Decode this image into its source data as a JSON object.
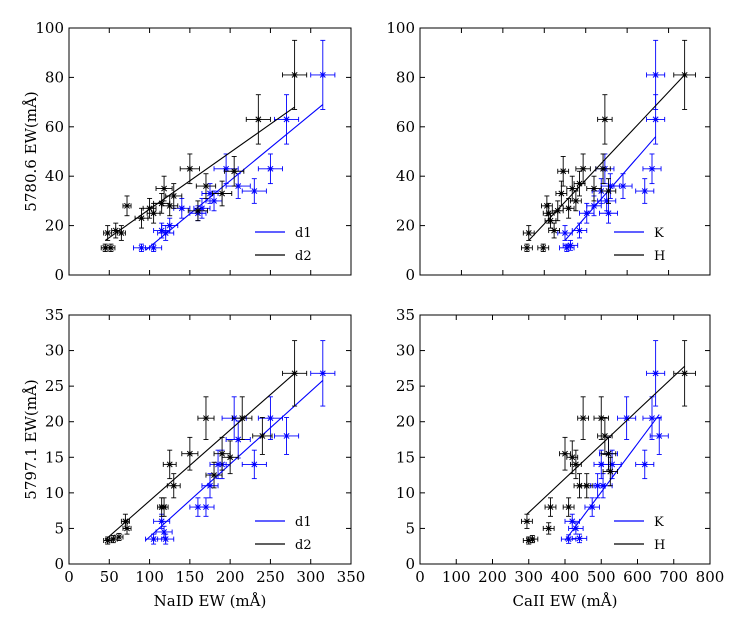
{
  "colors": {
    "blue": "#0000ff",
    "black": "#000000"
  },
  "chart_data": [
    {
      "type": "scatter",
      "ylabel": "5780.6 EW(mÅ)",
      "xlabel": "",
      "xlim": [
        0,
        350
      ],
      "ylim": [
        0,
        100
      ],
      "xticks": [],
      "xtick_labels": [],
      "yticks": [
        0,
        20,
        40,
        60,
        80,
        100
      ],
      "ytick_labels": [
        "0",
        "20",
        "40",
        "60",
        "80",
        "100"
      ],
      "legend": "bottom-right",
      "series": [
        {
          "name": "d1",
          "color": "blue",
          "points": [
            [
              90,
              11,
              10,
              1.5
            ],
            [
              105,
              11,
              10,
              1.5
            ],
            [
              115,
              18,
              10,
              3
            ],
            [
              120,
              17,
              10,
              3
            ],
            [
              125,
              20,
              10,
              3
            ],
            [
              140,
              27,
              10,
              4
            ],
            [
              160,
              25,
              10,
              3
            ],
            [
              165,
              27,
              10,
              4
            ],
            [
              175,
              33,
              10,
              4
            ],
            [
              180,
              30,
              10,
              4
            ],
            [
              195,
              43,
              15,
              6
            ],
            [
              210,
              36,
              15,
              5
            ],
            [
              230,
              34,
              15,
              5
            ],
            [
              250,
              43,
              15,
              6
            ],
            [
              270,
              63,
              15,
              10
            ],
            [
              315,
              81,
              15,
              14
            ]
          ],
          "fit": [
            [
              95,
              10
            ],
            [
              315,
              69
            ]
          ]
        },
        {
          "name": "d2",
          "color": "black",
          "points": [
            [
              45,
              11,
              5,
              1.5
            ],
            [
              48,
              17,
              5,
              3
            ],
            [
              52,
              11,
              5,
              1.5
            ],
            [
              58,
              18,
              5,
              3
            ],
            [
              65,
              17,
              5,
              3
            ],
            [
              72,
              28,
              5,
              4
            ],
            [
              90,
              23,
              8,
              4
            ],
            [
              100,
              27,
              8,
              4
            ],
            [
              105,
              25,
              8,
              4
            ],
            [
              115,
              29,
              10,
              4
            ],
            [
              118,
              35,
              10,
              5
            ],
            [
              125,
              28,
              10,
              4
            ],
            [
              130,
              32,
              10,
              5
            ],
            [
              150,
              43,
              12,
              6
            ],
            [
              160,
              26,
              12,
              4
            ],
            [
              170,
              36,
              12,
              5
            ],
            [
              190,
              33,
              12,
              5
            ],
            [
              205,
              42,
              12,
              6
            ],
            [
              235,
              63,
              15,
              10
            ],
            [
              280,
              81,
              15,
              14
            ]
          ],
          "fit": [
            [
              45,
              14
            ],
            [
              280,
              68
            ]
          ]
        }
      ]
    },
    {
      "type": "scatter",
      "ylabel": "",
      "xlabel": "",
      "xlim": [
        0,
        800
      ],
      "ylim": [
        0,
        100
      ],
      "xticks": [],
      "xtick_labels": [],
      "yticks": [
        0,
        20,
        40,
        60,
        80,
        100
      ],
      "ytick_labels": [
        "0",
        "20",
        "40",
        "60",
        "80",
        "100"
      ],
      "legend": "bottom-right",
      "series": [
        {
          "name": "K",
          "color": "blue",
          "points": [
            [
              400,
              17,
              20,
              3
            ],
            [
              405,
              11,
              20,
              1.5
            ],
            [
              415,
              12,
              20,
              2
            ],
            [
              440,
              18,
              20,
              3
            ],
            [
              460,
              25,
              20,
              4
            ],
            [
              480,
              28,
              20,
              4
            ],
            [
              500,
              34,
              25,
              5
            ],
            [
              510,
              43,
              25,
              6
            ],
            [
              515,
              30,
              25,
              4
            ],
            [
              520,
              25,
              25,
              4
            ],
            [
              525,
              36,
              25,
              5
            ],
            [
              560,
              36,
              25,
              5
            ],
            [
              620,
              34,
              25,
              5
            ],
            [
              640,
              43,
              25,
              6
            ],
            [
              650,
              63,
              25,
              10
            ],
            [
              650,
              81,
              25,
              14
            ]
          ],
          "fit": [
            [
              400,
              14
            ],
            [
              650,
              56
            ]
          ]
        },
        {
          "name": "H",
          "color": "black",
          "points": [
            [
              295,
              11,
              15,
              1.5
            ],
            [
              300,
              17,
              15,
              3
            ],
            [
              340,
              11,
              15,
              1.5
            ],
            [
              350,
              28,
              15,
              4
            ],
            [
              355,
              25,
              15,
              4
            ],
            [
              360,
              22,
              15,
              3
            ],
            [
              370,
              18,
              15,
              3
            ],
            [
              380,
              26,
              15,
              4
            ],
            [
              390,
              33,
              15,
              5
            ],
            [
              395,
              42,
              15,
              6
            ],
            [
              410,
              27,
              15,
              4
            ],
            [
              420,
              35,
              15,
              5
            ],
            [
              430,
              30,
              15,
              4
            ],
            [
              440,
              37,
              15,
              5
            ],
            [
              450,
              43,
              20,
              6
            ],
            [
              480,
              35,
              20,
              5
            ],
            [
              505,
              43,
              20,
              6
            ],
            [
              510,
              63,
              20,
              10
            ],
            [
              520,
              34,
              20,
              5
            ],
            [
              730,
              81,
              30,
              14
            ]
          ],
          "fit": [
            [
              300,
              14
            ],
            [
              730,
              81
            ]
          ]
        }
      ]
    },
    {
      "type": "scatter",
      "ylabel": "5797.1 EW(mÅ)",
      "xlabel": "NaID EW (mÅ)",
      "xlim": [
        0,
        350
      ],
      "ylim": [
        0,
        35
      ],
      "xticks": [
        0,
        50,
        100,
        150,
        200,
        250,
        300,
        350
      ],
      "xtick_labels": [
        "0",
        "50",
        "100",
        "150",
        "200",
        "250",
        "300",
        "350"
      ],
      "yticks": [
        0,
        5,
        10,
        15,
        20,
        25,
        30,
        35
      ],
      "ytick_labels": [
        "0",
        "5",
        "10",
        "15",
        "20",
        "25",
        "30",
        "35"
      ],
      "legend": "bottom-right",
      "series": [
        {
          "name": "d1",
          "color": "blue",
          "points": [
            [
              105,
              3.5,
              10,
              0.7
            ],
            [
              115,
              6,
              10,
              1
            ],
            [
              118,
              4.5,
              10,
              0.8
            ],
            [
              120,
              3.5,
              10,
              0.7
            ],
            [
              160,
              8,
              10,
              1.3
            ],
            [
              170,
              8,
              10,
              1.3
            ],
            [
              175,
              11,
              10,
              1.7
            ],
            [
              185,
              14,
              10,
              2
            ],
            [
              190,
              14,
              10,
              2
            ],
            [
              205,
              20.5,
              15,
              3
            ],
            [
              210,
              17.5,
              15,
              2.6
            ],
            [
              230,
              14,
              15,
              2
            ],
            [
              250,
              20.5,
              15,
              3
            ],
            [
              270,
              18,
              15,
              2.6
            ],
            [
              315,
              26.8,
              15,
              4.6
            ]
          ],
          "fit": [
            [
              95,
              3.3
            ],
            [
              315,
              25.8
            ]
          ]
        },
        {
          "name": "d2",
          "color": "black",
          "points": [
            [
              48,
              3.3,
              5,
              0.5
            ],
            [
              55,
              3.5,
              5,
              0.5
            ],
            [
              62,
              3.8,
              5,
              0.5
            ],
            [
              70,
              6,
              5,
              1
            ],
            [
              72,
              5,
              5,
              0.8
            ],
            [
              115,
              8,
              5,
              1.3
            ],
            [
              118,
              8,
              5,
              1.3
            ],
            [
              125,
              14,
              8,
              2
            ],
            [
              130,
              11,
              8,
              1.7
            ],
            [
              150,
              15.5,
              10,
              2.3
            ],
            [
              170,
              20.5,
              10,
              3
            ],
            [
              180,
              12.5,
              10,
              1.8
            ],
            [
              190,
              15.5,
              10,
              2.3
            ],
            [
              200,
              15,
              10,
              2.3
            ],
            [
              215,
              20.5,
              12,
              3
            ],
            [
              240,
              18,
              12,
              2.6
            ],
            [
              280,
              26.8,
              15,
              4.6
            ]
          ],
          "fit": [
            [
              45,
              3.4
            ],
            [
              280,
              26.8
            ]
          ]
        }
      ]
    },
    {
      "type": "scatter",
      "ylabel": "",
      "xlabel": "CaII EW (mÅ)",
      "xlim": [
        0,
        800
      ],
      "ylim": [
        0,
        35
      ],
      "xticks": [
        0,
        100,
        200,
        300,
        400,
        500,
        600,
        700,
        800
      ],
      "xtick_labels": [
        "0",
        "100",
        "200",
        "300",
        "400",
        "500",
        "600",
        "700",
        "800"
      ],
      "yticks": [
        0,
        5,
        10,
        15,
        20,
        25,
        30,
        35
      ],
      "ytick_labels": [
        "0",
        "5",
        "10",
        "15",
        "20",
        "25",
        "30",
        "35"
      ],
      "legend": "bottom-right",
      "series": [
        {
          "name": "K",
          "color": "blue",
          "points": [
            [
              410,
              3.5,
              20,
              0.6
            ],
            [
              420,
              6,
              20,
              1
            ],
            [
              430,
              5,
              20,
              0.8
            ],
            [
              440,
              3.6,
              20,
              0.6
            ],
            [
              475,
              8,
              20,
              1.3
            ],
            [
              490,
              11,
              20,
              1.7
            ],
            [
              500,
              14,
              20,
              2
            ],
            [
              505,
              11,
              25,
              1.7
            ],
            [
              520,
              15.5,
              25,
              2.3
            ],
            [
              530,
              14,
              25,
              2
            ],
            [
              570,
              20.5,
              25,
              3
            ],
            [
              620,
              14,
              25,
              2
            ],
            [
              640,
              20.5,
              25,
              3
            ],
            [
              660,
              18,
              25,
              2.6
            ],
            [
              650,
              26.8,
              25,
              4.6
            ]
          ],
          "fit": [
            [
              400,
              3.3
            ],
            [
              660,
              21
            ]
          ]
        },
        {
          "name": "H",
          "color": "black",
          "points": [
            [
              295,
              6,
              15,
              1
            ],
            [
              300,
              3.3,
              15,
              0.5
            ],
            [
              310,
              3.5,
              15,
              0.5
            ],
            [
              355,
              5,
              15,
              0.8
            ],
            [
              360,
              8,
              15,
              1.3
            ],
            [
              400,
              15.5,
              15,
              2.3
            ],
            [
              410,
              8,
              15,
              1.3
            ],
            [
              420,
              15,
              15,
              2.3
            ],
            [
              430,
              14,
              15,
              2
            ],
            [
              440,
              11,
              15,
              1.7
            ],
            [
              450,
              20.5,
              15,
              3
            ],
            [
              460,
              11,
              15,
              1.7
            ],
            [
              500,
              20.5,
              20,
              3
            ],
            [
              510,
              18,
              20,
              2.6
            ],
            [
              520,
              15.5,
              20,
              2.3
            ],
            [
              525,
              13,
              20,
              2
            ],
            [
              730,
              26.8,
              30,
              4.6
            ]
          ],
          "fit": [
            [
              295,
              7
            ],
            [
              730,
              27.8
            ]
          ]
        }
      ]
    }
  ]
}
